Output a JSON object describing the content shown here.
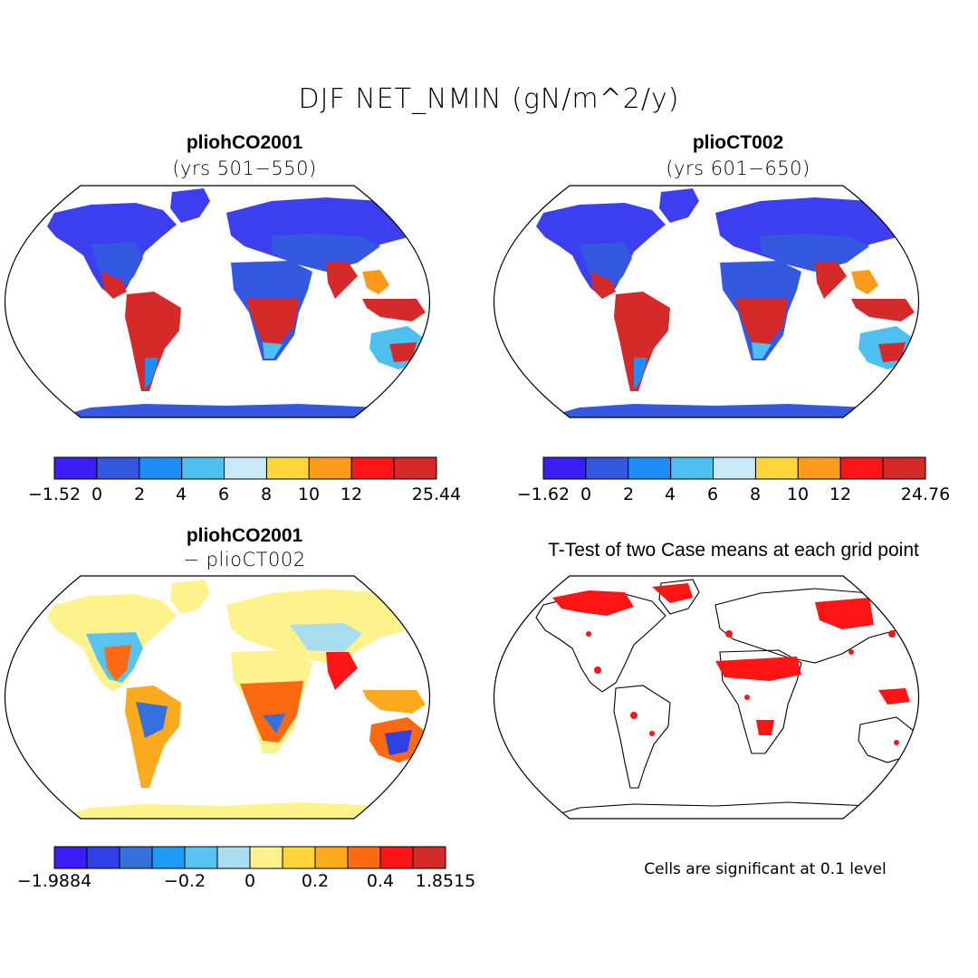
{
  "title": "DJF NET_NMIN (gN/m^2/y)",
  "panels": [
    {
      "case": "pliohCO2001",
      "years": "(yrs 501−550)"
    },
    {
      "case": "plioCT002",
      "years": "(yrs 601−650)"
    },
    {
      "case": "pliohCO2001",
      "years": "− plioCT002"
    },
    {
      "case": "T-Test of two Case means at each grid point",
      "years": ""
    }
  ],
  "note": "Cells are significant at 0.1 level",
  "colorbars": [
    {
      "colors": [
        "#3b1ef5",
        "#3458e0",
        "#1e8ef7",
        "#4ec0f0",
        "#c8e9f5",
        "#fed43a",
        "#fd9a1a",
        "#fd1414",
        "#d42a2a"
      ],
      "ticks": [
        "−1.52",
        "0",
        "2",
        "4",
        "6",
        "8",
        "10",
        "12",
        "25.44"
      ]
    },
    {
      "colors": [
        "#3b1ef5",
        "#3458e0",
        "#1e8ef7",
        "#4ec0f0",
        "#c8e9f5",
        "#fed43a",
        "#fd9a1a",
        "#fd1414",
        "#d42a2a"
      ],
      "ticks": [
        "−1.62",
        "0",
        "2",
        "4",
        "6",
        "8",
        "10",
        "12",
        "24.76"
      ]
    },
    {
      "colors": [
        "#3b1ef5",
        "#3040e5",
        "#3670dc",
        "#1e9af7",
        "#58c3f0",
        "#a9dcee",
        "#fdf28c",
        "#fed43a",
        "#fdab1e",
        "#fd6a12",
        "#fd1414",
        "#d42a2a"
      ],
      "ticks": [
        "−1.9884",
        "−0.2",
        "0",
        "0.2",
        "0.4",
        "1.8515"
      ]
    }
  ]
}
